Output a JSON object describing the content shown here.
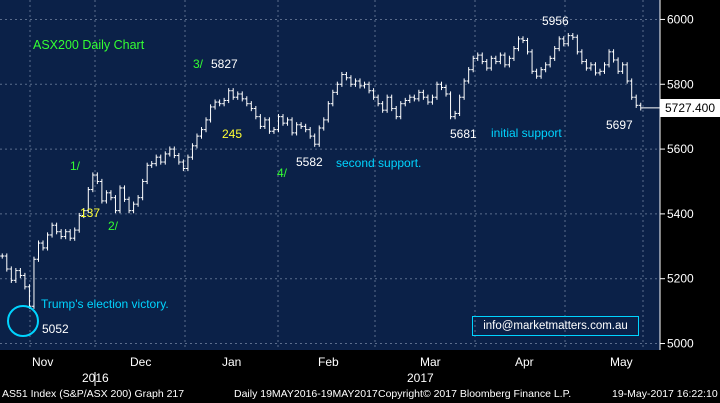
{
  "chart_data": {
    "type": "ohlc",
    "title": "ASX200 Daily Chart",
    "xlabel": "",
    "ylabel": "",
    "ylim": [
      4980,
      6060
    ],
    "y_ticks": [
      5000,
      5200,
      5400,
      5600,
      5800,
      6000
    ],
    "y_tick_labels": [
      "5000",
      "5200",
      "5400",
      "5600",
      "5800",
      "6000"
    ],
    "x_month_labels": [
      "Nov",
      "Dec",
      "Jan",
      "Feb",
      "Mar",
      "Apr",
      "May"
    ],
    "x_year_labels": [
      "2016",
      "2017"
    ],
    "last_price": "5727.400",
    "series": [
      {
        "values": [
          5270,
          5230,
          5195,
          5225,
          5210,
          5175,
          5115,
          5260,
          5310,
          5295,
          5335,
          5365,
          5345,
          5330,
          5345,
          5325,
          5350,
          5395,
          5410,
          5475,
          5520,
          5500,
          5440,
          5465,
          5450,
          5410,
          5480,
          5445,
          5410,
          5430,
          5450,
          5500,
          5550,
          5555,
          5575,
          5560,
          5585,
          5600,
          5580,
          5560,
          5540,
          5575,
          5610,
          5640,
          5660,
          5690,
          5730,
          5745,
          5740,
          5750,
          5780,
          5760,
          5770,
          5755,
          5740,
          5725,
          5700,
          5670,
          5690,
          5655,
          5660,
          5700,
          5680,
          5690,
          5650,
          5675,
          5670,
          5660,
          5640,
          5615,
          5665,
          5690,
          5740,
          5775,
          5800,
          5830,
          5820,
          5800,
          5810,
          5795,
          5800,
          5780,
          5760,
          5740,
          5720,
          5760,
          5725,
          5700,
          5740,
          5750,
          5760,
          5755,
          5775,
          5760,
          5745,
          5760,
          5800,
          5790,
          5770,
          5700,
          5710,
          5760,
          5810,
          5845,
          5880,
          5890,
          5870,
          5850,
          5880,
          5870,
          5890,
          5860,
          5880,
          5910,
          5940,
          5935,
          5900,
          5840,
          5825,
          5845,
          5860,
          5880,
          5910,
          5940,
          5925,
          5950,
          5945,
          5900,
          5870,
          5850,
          5860,
          5835,
          5840,
          5860,
          5900,
          5875,
          5840,
          5860,
          5810,
          5760,
          5735,
          5727
        ]
      }
    ],
    "annotations": {
      "wave_1": "1/",
      "wave_2": "2/",
      "wave_3": "3/",
      "wave_4": "4/",
      "value_137": "137",
      "value_245": "245",
      "level_5827": "5827",
      "level_5582": "5582",
      "level_5681": "5681",
      "level_5956": "5956",
      "level_5697": "5697",
      "level_5052": "5052",
      "second_support": "second support.",
      "initial_support": "initial support",
      "election": "Trump's election victory."
    }
  },
  "info_box": "info@marketmatters.com.au",
  "status_bar": {
    "security": "AS51 Index (S&P/ASX 200) Graph 217",
    "range": "Daily 19MAY2016-19MAY2017",
    "copyright": "Copyright© 2017 Bloomberg Finance L.P.",
    "timestamp": "19-May-2017 16:22:10"
  },
  "colors": {
    "background": "#000000",
    "plot_background": "#0b2148",
    "bar": "#ffffff",
    "grid": "#5b6d8c",
    "wave_labels": "#33ff33",
    "value_labels": "#ffff33",
    "support_text": "#00d4ff",
    "highlight_circle": "#00d4ff"
  }
}
